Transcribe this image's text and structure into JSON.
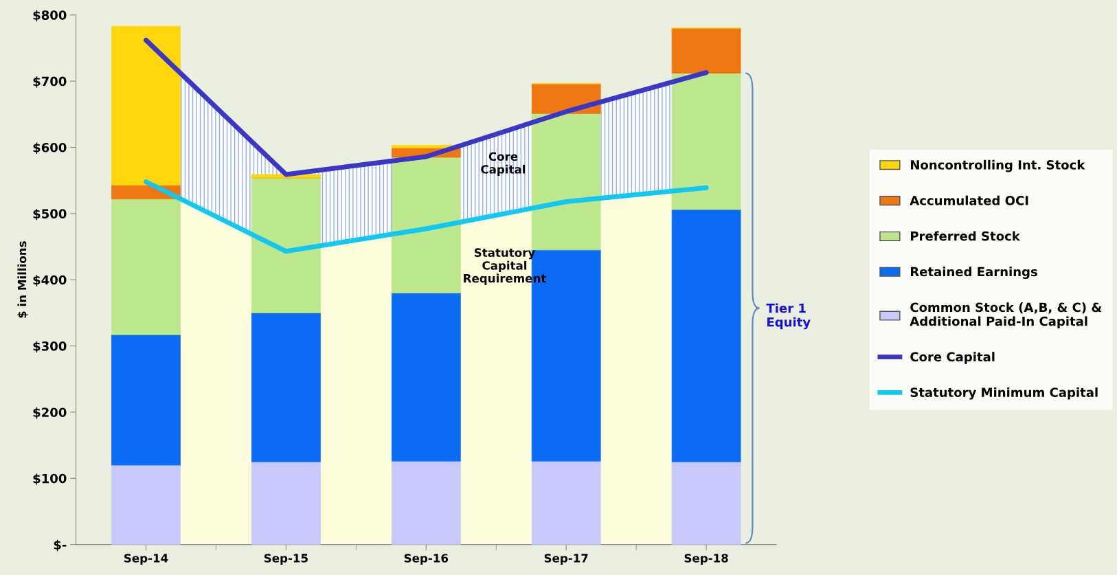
{
  "chart_data": {
    "type": "bar",
    "stacked": true,
    "ylabel": "$ in Millions",
    "categories": [
      "Sep-14",
      "Sep-15",
      "Sep-16",
      "Sep-17",
      "Sep-18"
    ],
    "series": [
      {
        "name": "Common Stock (A,B, & C) & Additional Paid-In Capital",
        "color": "#c8c8fa",
        "values": [
          120,
          125,
          126,
          126,
          125
        ]
      },
      {
        "name": "Retained Earnings",
        "color": "#0a6cf5",
        "values": [
          197,
          225,
          254,
          319,
          381
        ]
      },
      {
        "name": "Preferred Stock",
        "color": "#bde78c",
        "values": [
          205,
          204,
          205,
          206,
          206
        ]
      },
      {
        "name": "Accumulated OCI",
        "color": "#ef7712",
        "values": [
          21,
          0,
          14,
          45,
          68
        ]
      },
      {
        "name": "Noncontrolling Int. Stock",
        "color": "#ffd60a",
        "values": [
          240,
          5,
          4,
          0,
          0
        ]
      },
      {
        "type": "line",
        "name": "Core Capital",
        "color": "#3a36c8",
        "values": [
          762,
          559,
          586,
          654,
          713
        ],
        "lower": [
          548,
          443,
          477,
          518,
          539
        ],
        "upper": [
          762,
          559,
          586,
          654,
          713
        ]
      },
      {
        "type": "line",
        "name": "Statutory Minimum Capital",
        "color": "#12c8f0",
        "values": [
          548,
          443,
          477,
          518,
          539
        ],
        "lower": [
          0,
          0,
          0,
          0,
          0
        ],
        "upper": [
          548,
          443,
          477,
          518,
          539
        ]
      }
    ],
    "ylim": [
      0,
      800
    ],
    "yticks": [
      {
        "value": 0,
        "label": "$-"
      },
      {
        "value": 100,
        "label": "$100"
      },
      {
        "value": 200,
        "label": "$200"
      },
      {
        "value": 300,
        "label": "$300"
      },
      {
        "value": 400,
        "label": "$400"
      },
      {
        "value": 500,
        "label": "$500"
      },
      {
        "value": 600,
        "label": "$600"
      },
      {
        "value": 700,
        "label": "$700"
      },
      {
        "value": 800,
        "label": "$800"
      }
    ],
    "annotations": [
      "Core\nCapital",
      "Statutory\nCapital\nRequirement",
      "Tier 1\nEquity"
    ],
    "legend": "right",
    "grid": false
  }
}
